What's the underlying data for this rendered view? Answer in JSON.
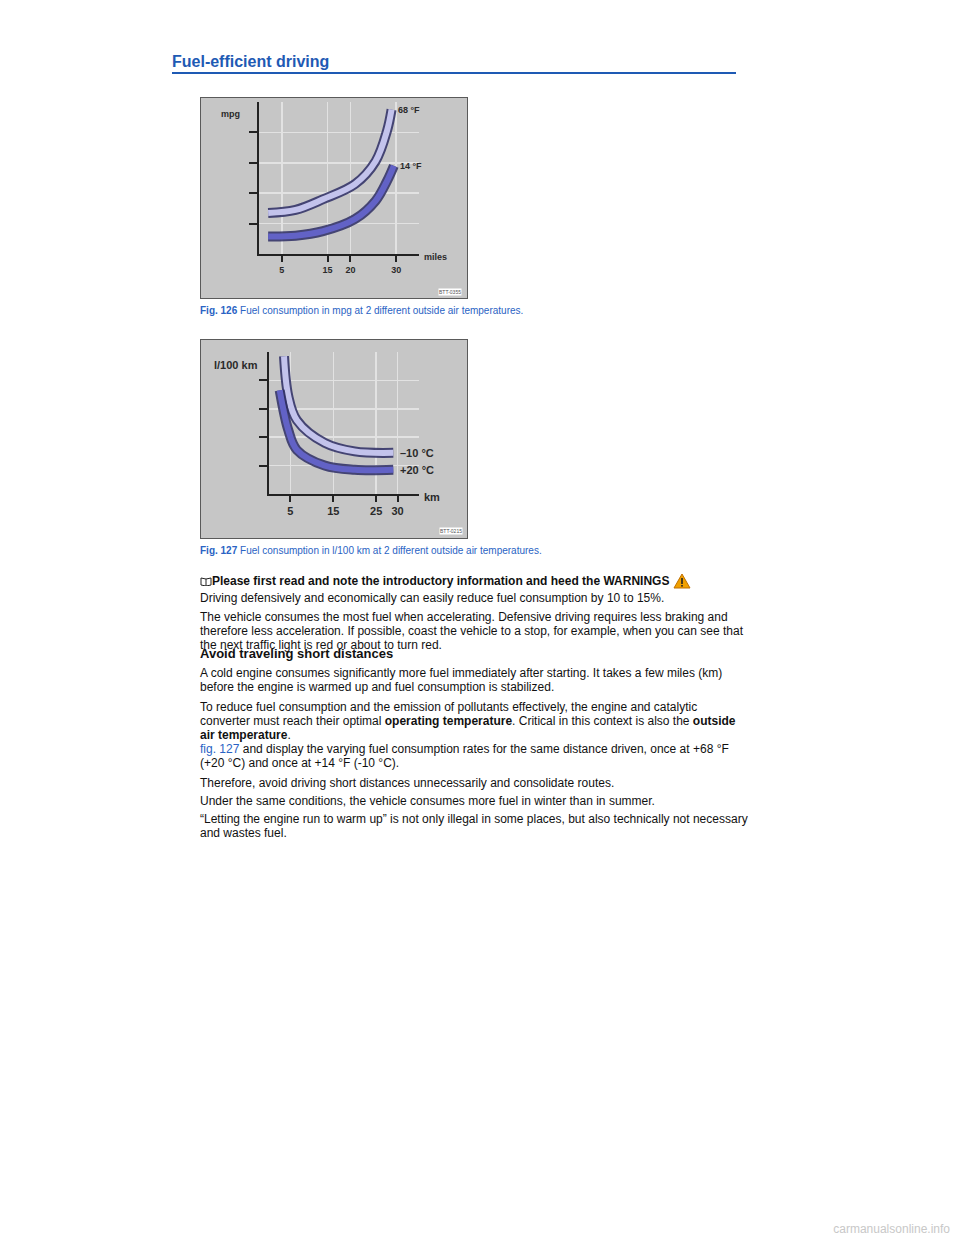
{
  "document": {
    "heading": "Fuel-efficient driving",
    "figures": [
      {
        "label": "Fig. 126",
        "caption": "Fuel consumption in mpg at 2 different outside air temperatures.",
        "figure_id": "BTT-0355"
      },
      {
        "label": "Fig. 127",
        "caption": "Fuel consumption in l/100 km at 2 different outside air temperatures.",
        "figure_id": "BTT-0215"
      }
    ],
    "notice": "Please first read and note the introductory information and heed the WARNINGS",
    "paragraphs_1": [
      [
        {
          "text": "Driving defensively and economically can easily reduce fuel consumption by 10 to 15%."
        }
      ],
      [
        {
          "text": "The vehicle consumes the most fuel when accelerating. Defensive driving requires less braking and therefore less acceleration. If possible, coast the vehicle to a stop, for example, when you can see that the next traffic light is red or about to turn red."
        }
      ]
    ],
    "subheading": "Avoid traveling short distances",
    "paragraphs_2": [
      [
        {
          "text": "A cold engine consumes significantly more fuel immediately after starting. It takes a few miles (km) before the engine is warmed up and fuel consumption is stabilized."
        }
      ],
      [
        {
          "text": "To reduce fuel consumption and the emission of pollutants effectively, the engine and catalytic converter must reach their optimal "
        },
        {
          "text": "operating temperature",
          "bold": true
        },
        {
          "text": ". Critical in this context is also the "
        },
        {
          "text": "outside air temperature",
          "bold": true
        },
        {
          "text": "."
        }
      ],
      [
        {
          "text": "fig. 127",
          "link": true
        },
        {
          "text": " and display the varying fuel consumption rates for the same distance driven, once at +68 °F (+20 °C) and once at +14 °F (-10 °C)."
        }
      ],
      [
        {
          "text": "Therefore, avoid driving short distances unnecessarily and consolidate routes."
        }
      ],
      [
        {
          "text": "Under the same conditions, the vehicle consumes more fuel in winter than in summer."
        }
      ],
      [
        {
          "text": "“Letting the engine run to warm up” is not only illegal in some places, but also technically not necessary and wastes fuel."
        }
      ]
    ],
    "watermark": "carmanualsonline.info"
  },
  "chart_data": [
    {
      "type": "line",
      "ylabel": "mpg",
      "xlabel": "miles",
      "xlim": [
        0,
        35
      ],
      "xticks": [
        5,
        15,
        20,
        30
      ],
      "ylim": [
        0,
        10
      ],
      "yticks": [
        2,
        4,
        6,
        8
      ],
      "tick_labels": "x",
      "grid": true,
      "series": [
        {
          "name": "68 °F",
          "color": "#c3c3ec",
          "x": [
            2,
            8,
            14,
            21,
            25.5,
            28,
            29
          ],
          "values": [
            2.7,
            2.9,
            3.6,
            4.6,
            6.1,
            8.1,
            9.5
          ]
        },
        {
          "name": "14 °F",
          "color": "#6262c6",
          "x": [
            2,
            8,
            14,
            21,
            25.5,
            28,
            29.5
          ],
          "values": [
            1.15,
            1.2,
            1.5,
            2.3,
            3.5,
            4.8,
            5.8
          ]
        }
      ]
    },
    {
      "type": "line",
      "ylabel": "l/100 km",
      "xlabel": "km",
      "xlim": [
        0,
        35
      ],
      "xticks": [
        5,
        15,
        25,
        30
      ],
      "ylim": [
        0,
        10
      ],
      "yticks": [
        2,
        4,
        6,
        8
      ],
      "tick_labels": "x",
      "grid": true,
      "series": [
        {
          "name": "–10 °C",
          "color": "#c3c3ec",
          "x": [
            3.5,
            4.5,
            6.5,
            13,
            20,
            29
          ],
          "values": [
            9.7,
            6.9,
            5.2,
            3.6,
            3.0,
            2.9
          ]
        },
        {
          "name": "+20 °C",
          "color": "#6262c6",
          "x": [
            2.5,
            4.5,
            6.5,
            13,
            20,
            29
          ],
          "values": [
            7.3,
            4.5,
            3.1,
            2.0,
            1.7,
            1.7
          ]
        }
      ]
    }
  ]
}
